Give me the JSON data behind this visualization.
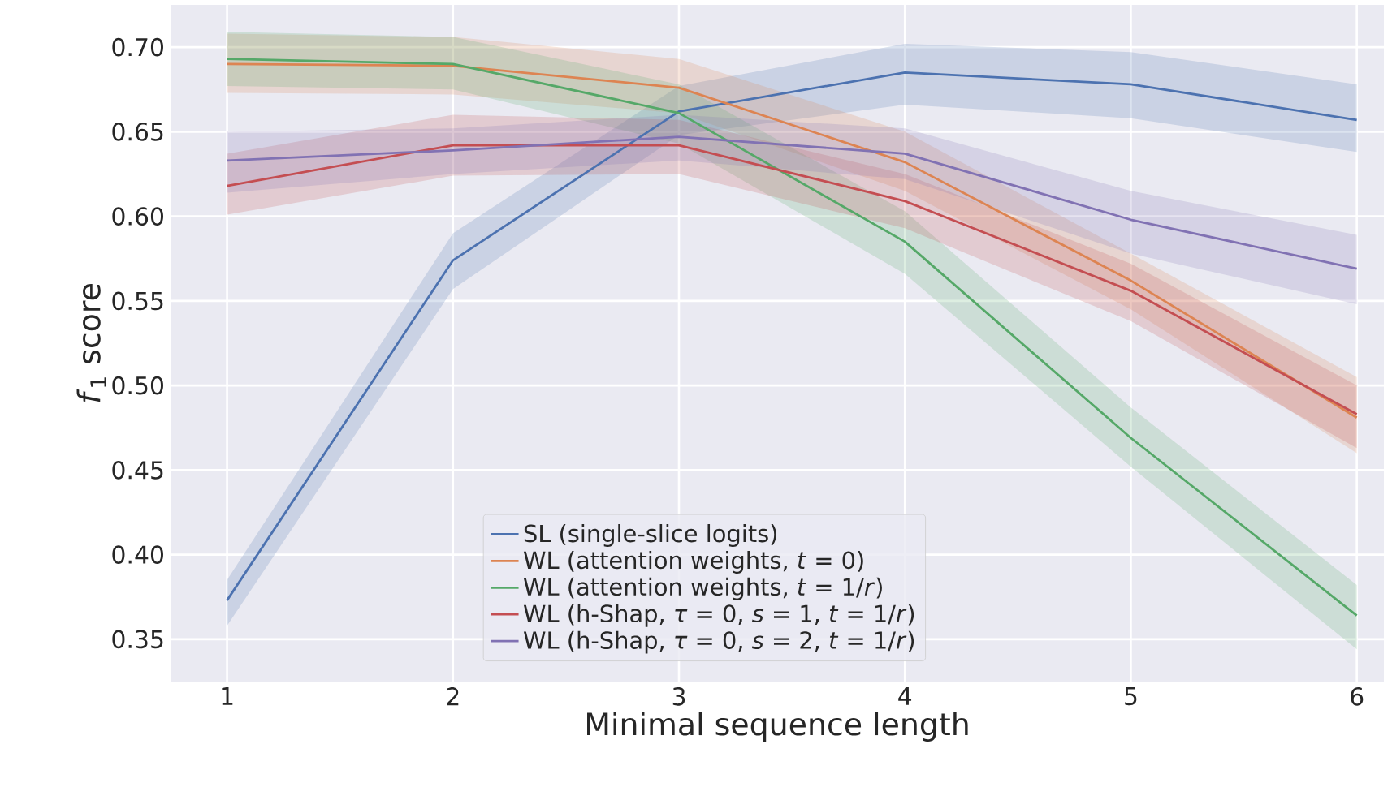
{
  "chart_data": {
    "type": "line",
    "xlabel": "Minimal sequence length",
    "ylabel": "*f*$_{1}$ score",
    "x": [
      1,
      2,
      3,
      4,
      5,
      6
    ],
    "xlim": [
      0.75,
      6.12
    ],
    "ylim": [
      0.325,
      0.725
    ],
    "xticks": [
      1,
      2,
      3,
      4,
      5,
      6
    ],
    "yticks": [
      0.35,
      {
        "value": 0.4,
        "label": "0.40"
      },
      0.45,
      {
        "value": 0.5,
        "label": "0.50"
      },
      0.55,
      {
        "value": 0.6,
        "label": "0.60"
      },
      0.65,
      {
        "value": 0.7,
        "label": "0.70"
      }
    ],
    "grid": true,
    "legend": "bottom",
    "series": [
      {
        "name": "SL (single-slice logits)",
        "color": "#4c72b0",
        "values": [
          0.373,
          0.574,
          0.662,
          0.685,
          0.678,
          0.657
        ],
        "lower": [
          0.358,
          0.557,
          0.648,
          0.666,
          0.658,
          0.638
        ],
        "upper": [
          0.385,
          0.59,
          0.677,
          0.702,
          0.697,
          0.678
        ]
      },
      {
        "name": "WL (attention weights, *t* = 0)",
        "color": "#dd8452",
        "values": [
          0.69,
          0.689,
          0.676,
          0.632,
          0.562,
          0.481
        ],
        "lower": [
          0.673,
          0.672,
          0.661,
          0.615,
          0.545,
          0.46
        ],
        "upper": [
          0.708,
          0.706,
          0.693,
          0.65,
          0.578,
          0.505
        ]
      },
      {
        "name": "WL (attention weights, *t* = 1/*r*)",
        "color": "#55a868",
        "values": [
          0.693,
          0.69,
          0.661,
          0.585,
          0.469,
          0.364
        ],
        "lower": [
          0.677,
          0.675,
          0.643,
          0.566,
          0.452,
          0.344
        ],
        "upper": [
          0.709,
          0.706,
          0.678,
          0.603,
          0.487,
          0.382
        ]
      },
      {
        "name": "WL (h-Shap, *τ* = 0, *s* = 1, *t* = 1/*r*)",
        "color": "#c44e52",
        "values": [
          0.618,
          0.642,
          0.642,
          0.609,
          0.556,
          0.483
        ],
        "lower": [
          0.601,
          0.624,
          0.625,
          0.593,
          0.538,
          0.463
        ],
        "upper": [
          0.637,
          0.66,
          0.657,
          0.625,
          0.572,
          0.5
        ]
      },
      {
        "name": "WL (h-Shap, *τ* = 0, *s* = 2, *t* = 1/*r*)",
        "color": "#8172b3",
        "values": [
          0.633,
          0.639,
          0.647,
          0.637,
          0.598,
          0.569
        ],
        "lower": [
          0.614,
          0.625,
          0.633,
          0.622,
          0.578,
          0.548
        ],
        "upper": [
          0.65,
          0.652,
          0.66,
          0.652,
          0.615,
          0.589
        ]
      }
    ]
  }
}
